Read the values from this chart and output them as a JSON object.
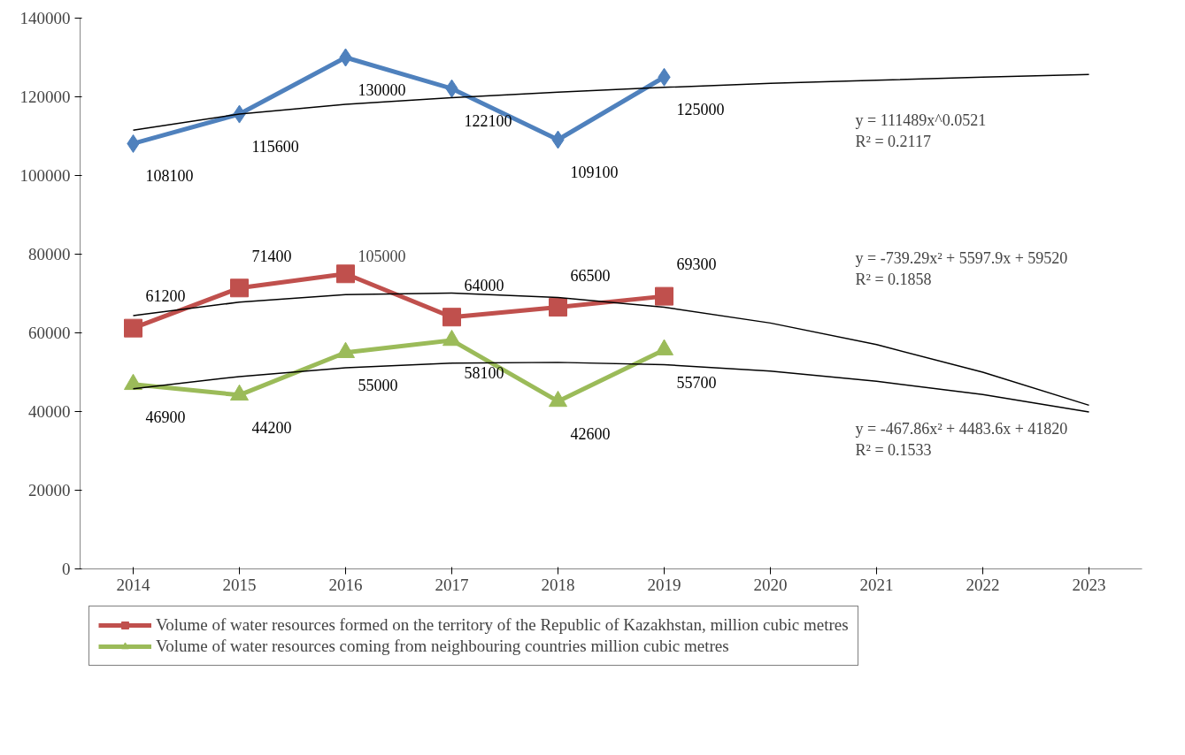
{
  "chart_data": {
    "type": "line",
    "categories": [
      "2014",
      "2015",
      "2016",
      "2017",
      "2018",
      "2019",
      "2020",
      "2021",
      "2022",
      "2023"
    ],
    "ylim": [
      0,
      140000
    ],
    "yticks": [
      0,
      20000,
      40000,
      60000,
      80000,
      100000,
      120000,
      140000
    ],
    "legend": "bottom",
    "series": [
      {
        "color": "#4f81bd",
        "marker": "diamond",
        "values": [
          108100,
          115600,
          130000,
          122100,
          109100,
          125000,
          null,
          null,
          null,
          null
        ],
        "value_labels": [
          "108100",
          "115600",
          "130000",
          "122100",
          "109100",
          "125000",
          null,
          null,
          null,
          null
        ]
      },
      {
        "name": "Volume of water resources formed on the territory of the Republic of Kazakhstan, million cubic metres",
        "color": "#c0504d",
        "marker": "square",
        "values": [
          61200,
          71400,
          75000,
          64000,
          66500,
          69300,
          null,
          null,
          null,
          null
        ],
        "value_labels": [
          "61200",
          "71400",
          null,
          "64000",
          "66500",
          "69300",
          null,
          null,
          null,
          null
        ]
      },
      {
        "name": "Volume of water resources coming from neighbouring countries million cubic metres",
        "color": "#9bbb59",
        "marker": "triangle",
        "values": [
          46900,
          44200,
          55000,
          58100,
          42600,
          55700,
          null,
          null,
          null,
          null
        ],
        "value_labels": [
          "46900",
          "44200",
          "55000",
          "58100",
          "42600",
          "55700",
          null,
          null,
          null,
          null
        ]
      },
      {
        "type": "line",
        "color": "#000000",
        "marker": "none",
        "values": [
          111500,
          115600,
          118100,
          119800,
          121200,
          122400,
          123400,
          124200,
          125000,
          125700
        ]
      },
      {
        "type": "line",
        "color": "#000000",
        "marker": "none",
        "values": [
          64400,
          67800,
          69700,
          70100,
          69000,
          66500,
          62500,
          57000,
          50000,
          41600
        ]
      },
      {
        "type": "line",
        "color": "#000000",
        "marker": "none",
        "values": [
          45800,
          48900,
          51100,
          52300,
          52500,
          51900,
          50300,
          47700,
          44300,
          39900
        ]
      }
    ],
    "annotations": [
      {
        "text": "105000",
        "x": "2016",
        "y": 75000
      },
      "y = 111489x^0.0521\nR² = 0.2117",
      "y = -739.29x² + 5597.9x + 59520\nR² = 0.1858",
      "y = -467.86x² + 4483.6x + 41820\nR² = 0.1533"
    ]
  }
}
